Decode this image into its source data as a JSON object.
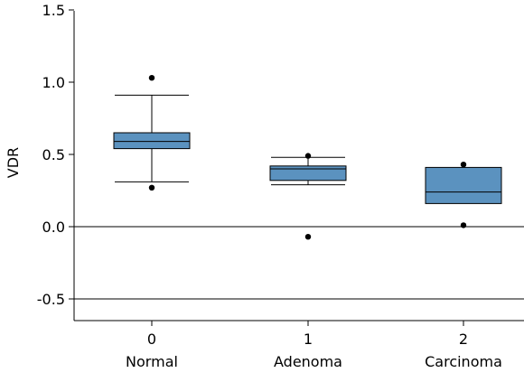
{
  "chart_data": {
    "type": "box",
    "ylabel": "VDR",
    "xlabel": "",
    "ylim": [
      -0.65,
      1.5
    ],
    "yticks": [
      {
        "value": 1.5,
        "label": "1.5"
      },
      {
        "value": 1.0,
        "label": "1.0"
      },
      {
        "value": 0.5,
        "label": "0.5"
      },
      {
        "value": 0.0,
        "label": "0.0"
      },
      {
        "value": -0.5,
        "label": "-0.5"
      }
    ],
    "reference_lines": [
      0.0,
      -0.5
    ],
    "box_color": "#5b92bf",
    "groups": [
      {
        "x": "0",
        "category": "Normal",
        "whisker_low": 0.31,
        "q1": 0.54,
        "median": 0.59,
        "q3": 0.65,
        "whisker_high": 0.91,
        "outliers": [
          1.03,
          0.27
        ]
      },
      {
        "x": "1",
        "category": "Adenoma",
        "whisker_low": 0.29,
        "q1": 0.32,
        "median": 0.4,
        "q3": 0.42,
        "whisker_high": 0.48,
        "outliers": [
          0.49,
          -0.07
        ]
      },
      {
        "x": "2",
        "category": "Carcinoma",
        "whisker_low": null,
        "q1": 0.16,
        "median": 0.24,
        "q3": 0.41,
        "whisker_high": null,
        "outliers": [
          0.43,
          0.01
        ]
      }
    ]
  }
}
